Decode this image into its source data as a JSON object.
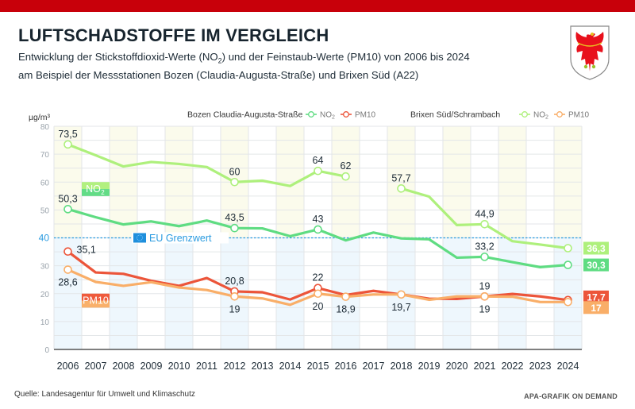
{
  "header": {
    "title": "LUFTSCHADSTOFFE IM VERGLEICH",
    "subtitle_line1_pre": "Entwicklung der Stickstoffdioxid-Werte (NO",
    "subtitle_line1_sub": "2",
    "subtitle_line1_post": ") und der Feinstaub-Werte (PM10) von 2006 bis 2024",
    "subtitle_line2": "am Beispiel der Messstationen Bozen (Claudia-Augusta-Straße) und Brixen Süd (A22)",
    "crest_icon": "south-tyrol-eagle-crest"
  },
  "footer": {
    "source": "Quelle: Landesagentur für Umwelt und Klimaschutz",
    "credit": "APA-GRAFIK ON DEMAND"
  },
  "chart_data": {
    "type": "line",
    "title": "LUFTSCHADSTOFFE IM VERGLEICH",
    "ylabel": "µg/m³",
    "xlabel": "",
    "ylim": [
      0,
      80
    ],
    "yticks": [
      0,
      10,
      20,
      30,
      40,
      50,
      60,
      70,
      80
    ],
    "grid": true,
    "categories": [
      "2006",
      "2007",
      "2008",
      "2009",
      "2010",
      "2011",
      "2012",
      "2013",
      "2014",
      "2015",
      "2016",
      "2017",
      "2018",
      "2019",
      "2020",
      "2021",
      "2022",
      "2023",
      "2024"
    ],
    "reference_line": {
      "value": 40,
      "label": "EU Grenzwert",
      "color": "#2a9be0"
    },
    "legend": {
      "placement": "top-right",
      "groups": [
        {
          "station": "Bozen Claudia-Augusta-Straße",
          "entries": [
            {
              "label": "NO2",
              "series": 1
            },
            {
              "label": "PM10",
              "series": 2
            }
          ]
        },
        {
          "station": "Brixen Süd/Schrambach",
          "entries": [
            {
              "label": "NO2",
              "series": 0
            },
            {
              "label": "PM10",
              "series": 3
            }
          ]
        }
      ]
    },
    "inline_labels": [
      {
        "text": "NO",
        "sub": "2",
        "colors": [
          "#b2f07f",
          "#62dc86"
        ]
      },
      {
        "text": "PM10",
        "colors": [
          "#ef5a3c",
          "#f9b06a"
        ]
      }
    ],
    "series": [
      {
        "name": "Brixen Süd/Schrambach NO2",
        "color": "#aef07c",
        "values": [
          73.5,
          69.6,
          65.6,
          67.2,
          66.5,
          65.4,
          60,
          60.5,
          58.6,
          64,
          62,
          null,
          57.7,
          54.8,
          44.6,
          44.9,
          38.8,
          37.6,
          36.3
        ],
        "labels": [
          {
            "i": 0,
            "text": "73,5",
            "pos": "above"
          },
          {
            "i": 6,
            "text": "60",
            "pos": "above"
          },
          {
            "i": 9,
            "text": "64",
            "pos": "above"
          },
          {
            "i": 10,
            "text": "62",
            "pos": "above"
          },
          {
            "i": 12,
            "text": "57,7",
            "pos": "above"
          },
          {
            "i": 15,
            "text": "44,9",
            "pos": "above"
          }
        ],
        "markers": [
          0,
          6,
          9,
          10,
          12,
          15,
          18
        ],
        "end_badge": "36,3"
      },
      {
        "name": "Bozen Claudia-Augusta-Straße NO2",
        "color": "#5fdc82",
        "values": [
          50.3,
          47.4,
          44.8,
          45.9,
          44.2,
          46.2,
          43.5,
          43.4,
          40.6,
          43,
          39.1,
          41.9,
          39.8,
          39.5,
          32.9,
          33.2,
          31.3,
          29.5,
          30.3
        ],
        "labels": [
          {
            "i": 0,
            "text": "50,3",
            "pos": "above"
          },
          {
            "i": 6,
            "text": "43,5",
            "pos": "above"
          },
          {
            "i": 9,
            "text": "43",
            "pos": "above"
          },
          {
            "i": 15,
            "text": "33,2",
            "pos": "above"
          }
        ],
        "markers": [
          0,
          6,
          9,
          15,
          18
        ],
        "end_badge": "30,3"
      },
      {
        "name": "Bozen Claudia-Augusta-Straße PM10",
        "color": "#ec553a",
        "values": [
          35.1,
          27.6,
          27.1,
          24.6,
          22.8,
          25.6,
          20.8,
          20.5,
          17.9,
          22,
          19.5,
          21,
          19.7,
          18.2,
          18.1,
          19,
          19.9,
          19,
          17.7
        ],
        "labels": [
          {
            "i": 0,
            "text": "35,1",
            "pos": "right"
          },
          {
            "i": 6,
            "text": "20,8",
            "pos": "above"
          },
          {
            "i": 9,
            "text": "22",
            "pos": "above"
          },
          {
            "i": 15,
            "text": "19",
            "pos": "above"
          }
        ],
        "markers": [
          0,
          6,
          9,
          15,
          18
        ],
        "end_badge": "17,7"
      },
      {
        "name": "Brixen Süd/Schrambach PM10",
        "color": "#f9ae68",
        "values": [
          28.6,
          24.2,
          22.8,
          24.1,
          22.2,
          21.3,
          19,
          18.3,
          16,
          20,
          18.9,
          19.7,
          19.7,
          17.8,
          19,
          19,
          18.9,
          17,
          17
        ],
        "labels": [
          {
            "i": 0,
            "text": "28,6",
            "pos": "below"
          },
          {
            "i": 6,
            "text": "19",
            "pos": "below"
          },
          {
            "i": 9,
            "text": "20",
            "pos": "below"
          },
          {
            "i": 10,
            "text": "18,9",
            "pos": "below"
          },
          {
            "i": 12,
            "text": "19,7",
            "pos": "below"
          },
          {
            "i": 15,
            "text": "19",
            "pos": "below"
          }
        ],
        "markers": [
          0,
          6,
          9,
          10,
          12,
          15,
          18
        ],
        "end_badge": "17"
      }
    ]
  }
}
